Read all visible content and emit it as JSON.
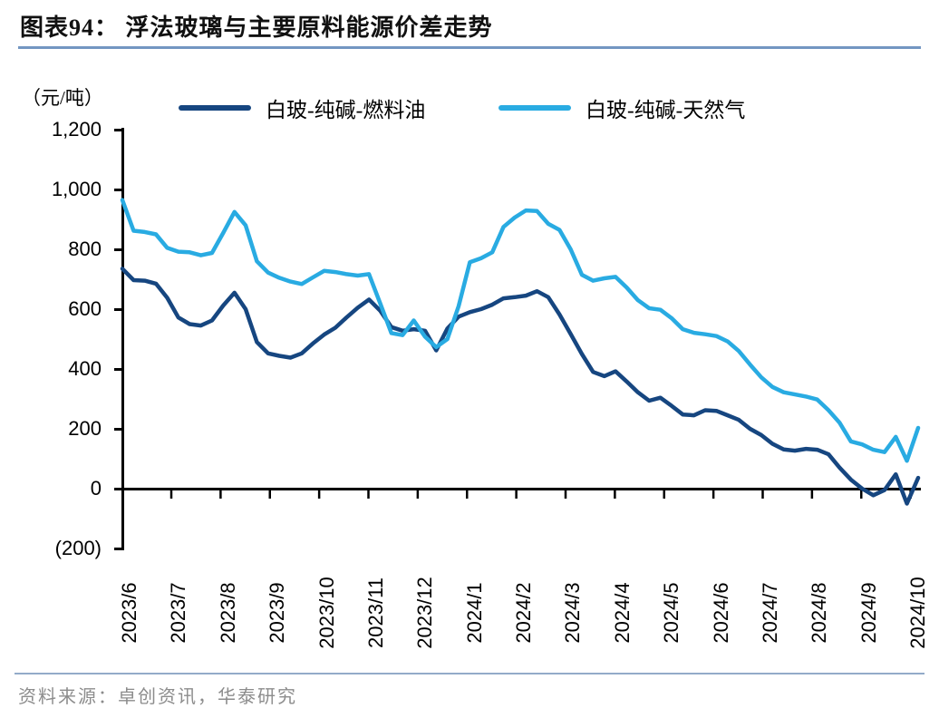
{
  "header": {
    "title": "图表94： 浮法玻璃与主要原料能源价差走势"
  },
  "footer": {
    "source": "资料来源：卓创资讯，华泰研究"
  },
  "chart_data": {
    "type": "line",
    "title": "浮法玻璃与主要原料能源价差走势",
    "unit_label": "（元/吨）",
    "legend_position": "top",
    "grid": "zero-baseline-only",
    "ylim": [
      -200,
      1200
    ],
    "y_ticks": [
      {
        "value": 1200,
        "label": "1,200"
      },
      {
        "value": 1000,
        "label": "1,000"
      },
      {
        "value": 800,
        "label": "800"
      },
      {
        "value": 600,
        "label": "600"
      },
      {
        "value": 400,
        "label": "400"
      },
      {
        "value": 200,
        "label": "200"
      },
      {
        "value": 0,
        "label": "0"
      },
      {
        "value": -200,
        "label": "(200)"
      }
    ],
    "x_tick_labels": [
      "2023/6",
      "2023/7",
      "2023/8",
      "2023/9",
      "2023/10",
      "2023/11",
      "2023/12",
      "2024/1",
      "2024/2",
      "2024/3",
      "2024/4",
      "2024/5",
      "2024/6",
      "2024/7",
      "2024/8",
      "2024/9",
      "2024/10"
    ],
    "x_frequency": "weekly",
    "series": [
      {
        "name": "白玻-纯碱-燃料油",
        "color": "#164680",
        "values": [
          735,
          697,
          695,
          685,
          638,
          572,
          550,
          545,
          562,
          612,
          655,
          600,
          490,
          452,
          444,
          438,
          452,
          485,
          515,
          538,
          572,
          605,
          632,
          595,
          540,
          528,
          533,
          528,
          462,
          535,
          575,
          590,
          600,
          615,
          636,
          640,
          645,
          660,
          640,
          582,
          517,
          450,
          390,
          376,
          392,
          358,
          322,
          294,
          304,
          277,
          248,
          245,
          262,
          260,
          245,
          230,
          200,
          179,
          150,
          131,
          127,
          133,
          130,
          115,
          70,
          30,
          0,
          -22,
          -5,
          48,
          -50,
          36
        ]
      },
      {
        "name": "白玻-纯碱-天然气",
        "color": "#29ABE2",
        "values": [
          965,
          862,
          858,
          850,
          805,
          792,
          790,
          780,
          788,
          855,
          925,
          880,
          760,
          722,
          705,
          692,
          684,
          706,
          728,
          724,
          717,
          712,
          717,
          620,
          520,
          513,
          562,
          508,
          473,
          500,
          610,
          757,
          770,
          790,
          875,
          906,
          930,
          928,
          885,
          865,
          800,
          715,
          695,
          703,
          708,
          672,
          630,
          603,
          598,
          570,
          533,
          521,
          516,
          510,
          492,
          460,
          415,
          372,
          340,
          322,
          315,
          308,
          298,
          262,
          220,
          158,
          148,
          130,
          122,
          173,
          93,
          203
        ]
      }
    ]
  }
}
